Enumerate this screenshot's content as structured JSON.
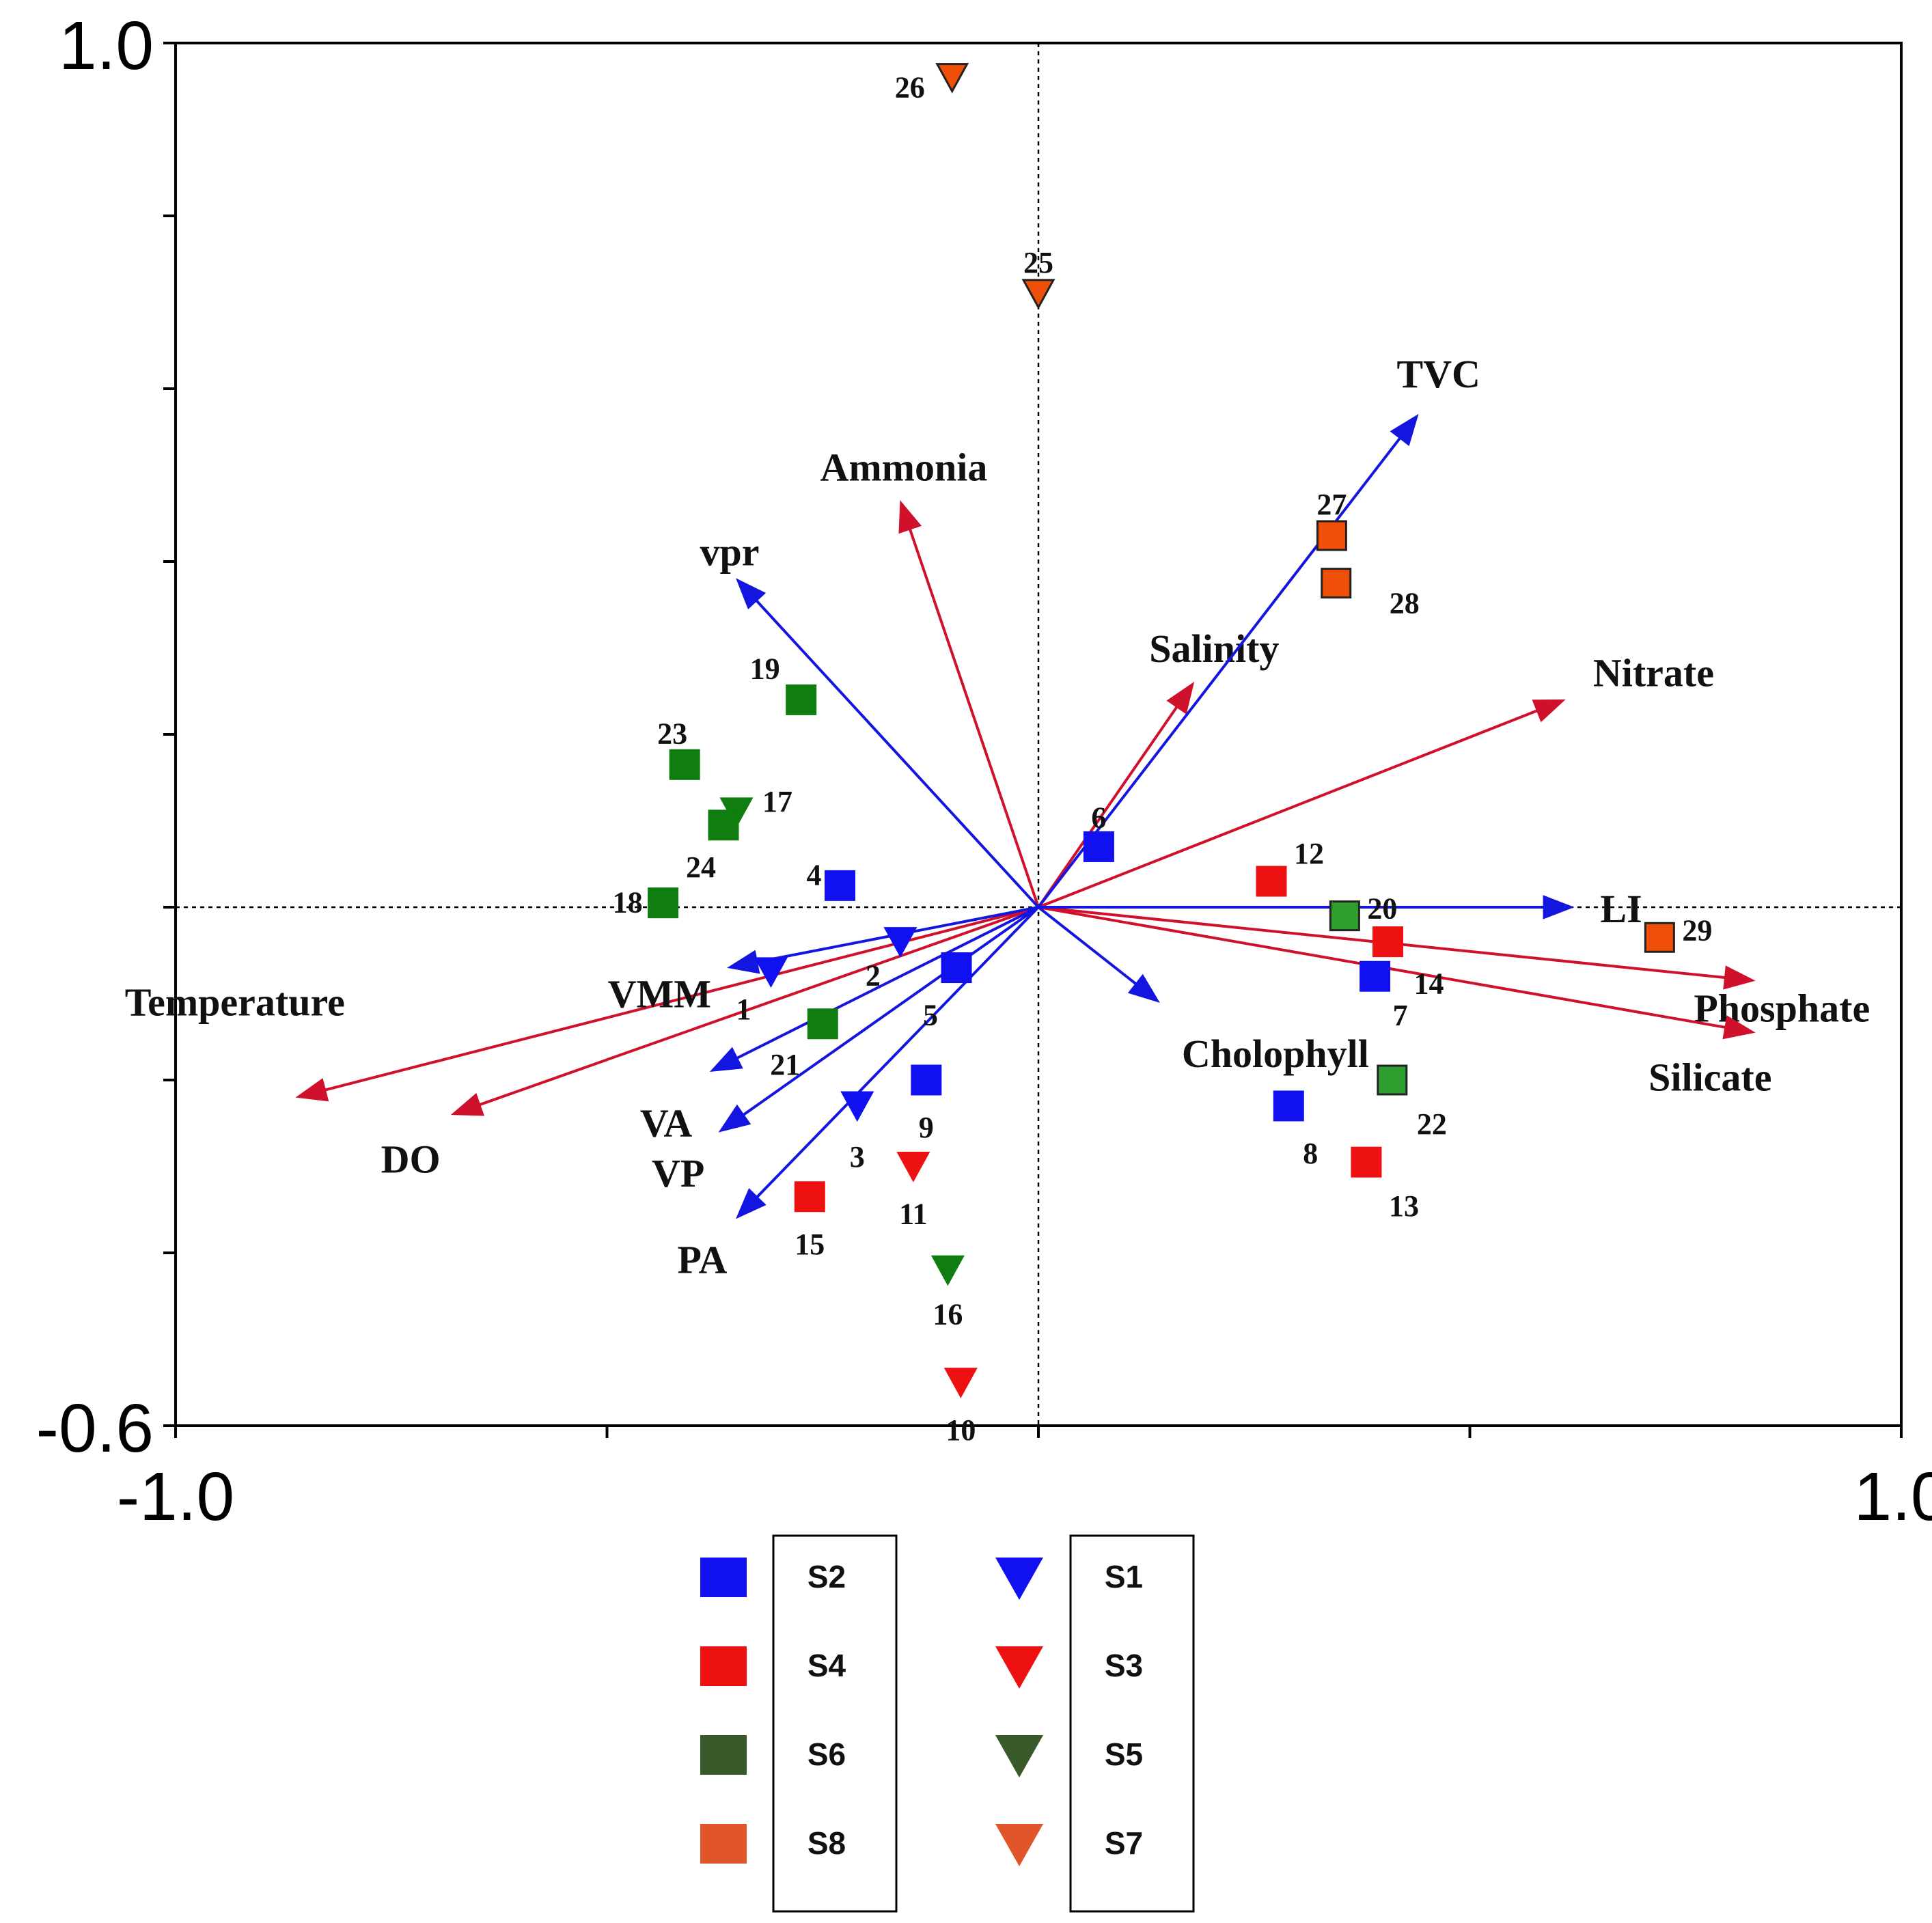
{
  "chart_data": {
    "type": "biplot",
    "xlim": [
      -1.0,
      1.0
    ],
    "ylim": [
      -0.6,
      1.0
    ],
    "x_tick_labels": [
      "-1.0",
      "1.0"
    ],
    "y_tick_labels": [
      "1.0",
      "-0.6"
    ],
    "colors": {
      "blue": "#1010f0",
      "red": "#ee1111",
      "green": "#0f7d0f",
      "light_green": "#2e9e2e",
      "orange": "#f04f0a",
      "env_arrow": "#d0112b",
      "bio_arrow": "#1515e0",
      "legend_s6": "#3a5a2c",
      "legend_s5": "#3a5a2c",
      "legend_s8": "#e0552a",
      "legend_s7": "#e0552a"
    },
    "environment_vectors": [
      {
        "name": "Temperature",
        "x": -0.86,
        "y": -0.22,
        "label_anchor": "left-above"
      },
      {
        "name": "DO",
        "x": -0.68,
        "y": -0.24,
        "label_anchor": "below"
      },
      {
        "name": "Ammonia",
        "x": -0.16,
        "y": 0.47,
        "label_anchor": "above"
      },
      {
        "name": "Salinity",
        "x": 0.18,
        "y": 0.26,
        "label_anchor": "above"
      },
      {
        "name": "Nitrate",
        "x": 0.61,
        "y": 0.24,
        "label_anchor": "right-above"
      },
      {
        "name": "Phosphate",
        "x": 0.83,
        "y": -0.085,
        "label_anchor": "right-below"
      },
      {
        "name": "Silicate",
        "x": 0.83,
        "y": -0.145,
        "label_anchor": "below"
      }
    ],
    "species_vectors": [
      {
        "name": "TVC",
        "x": 0.44,
        "y": 0.57
      },
      {
        "name": "vpr",
        "x": -0.35,
        "y": 0.38
      },
      {
        "name": "LI",
        "x": 0.62,
        "y": 0.0
      },
      {
        "name": "Cholophyll",
        "x": 0.14,
        "y": -0.11
      },
      {
        "name": "VMM",
        "x": -0.36,
        "y": -0.07
      },
      {
        "name": "VA",
        "x": -0.38,
        "y": -0.19
      },
      {
        "name": "VP",
        "x": -0.37,
        "y": -0.26
      },
      {
        "name": "PA",
        "x": -0.35,
        "y": -0.36
      }
    ],
    "samples": [
      {
        "id": "1",
        "x": -0.31,
        "y": -0.075,
        "shape": "triangle",
        "color": "blue"
      },
      {
        "id": "2",
        "x": -0.16,
        "y": -0.04,
        "shape": "triangle",
        "color": "blue"
      },
      {
        "id": "3",
        "x": -0.21,
        "y": -0.23,
        "shape": "triangle",
        "color": "blue"
      },
      {
        "id": "4",
        "x": -0.23,
        "y": 0.025,
        "shape": "square",
        "color": "blue"
      },
      {
        "id": "5",
        "x": -0.095,
        "y": -0.07,
        "shape": "square",
        "color": "blue"
      },
      {
        "id": "6",
        "x": 0.07,
        "y": 0.07,
        "shape": "square",
        "color": "blue"
      },
      {
        "id": "7",
        "x": 0.39,
        "y": -0.08,
        "shape": "square",
        "color": "blue"
      },
      {
        "id": "8",
        "x": 0.29,
        "y": -0.23,
        "shape": "square",
        "color": "blue"
      },
      {
        "id": "9",
        "x": -0.13,
        "y": -0.2,
        "shape": "square",
        "color": "blue"
      },
      {
        "id": "10",
        "x": -0.09,
        "y": -0.55,
        "shape": "triangle",
        "color": "red"
      },
      {
        "id": "11",
        "x": -0.145,
        "y": -0.3,
        "shape": "triangle",
        "color": "red"
      },
      {
        "id": "12",
        "x": 0.27,
        "y": 0.03,
        "shape": "square",
        "color": "red"
      },
      {
        "id": "13",
        "x": 0.38,
        "y": -0.295,
        "shape": "square",
        "color": "red"
      },
      {
        "id": "14",
        "x": 0.405,
        "y": -0.04,
        "shape": "square",
        "color": "red"
      },
      {
        "id": "15",
        "x": -0.265,
        "y": -0.335,
        "shape": "square",
        "color": "red"
      },
      {
        "id": "16",
        "x": -0.105,
        "y": -0.42,
        "shape": "triangle",
        "color": "green"
      },
      {
        "id": "17",
        "x": -0.35,
        "y": 0.11,
        "shape": "triangle",
        "color": "green"
      },
      {
        "id": "18",
        "x": -0.435,
        "y": 0.005,
        "shape": "square",
        "color": "green"
      },
      {
        "id": "19",
        "x": -0.275,
        "y": 0.24,
        "shape": "square",
        "color": "green"
      },
      {
        "id": "20",
        "x": 0.355,
        "y": -0.01,
        "shape": "square",
        "color": "light_green"
      },
      {
        "id": "21",
        "x": -0.25,
        "y": -0.135,
        "shape": "square",
        "color": "green"
      },
      {
        "id": "22",
        "x": 0.41,
        "y": -0.2,
        "shape": "square",
        "color": "light_green"
      },
      {
        "id": "23",
        "x": -0.41,
        "y": 0.165,
        "shape": "square",
        "color": "green"
      },
      {
        "id": "24",
        "x": -0.365,
        "y": 0.095,
        "shape": "square",
        "color": "green"
      },
      {
        "id": "25",
        "x": 0.0,
        "y": 0.71,
        "shape": "triangle",
        "color": "orange"
      },
      {
        "id": "26",
        "x": -0.1,
        "y": 0.96,
        "shape": "triangle",
        "color": "orange"
      },
      {
        "id": "27",
        "x": 0.34,
        "y": 0.43,
        "shape": "square",
        "color": "orange"
      },
      {
        "id": "28",
        "x": 0.345,
        "y": 0.375,
        "shape": "square",
        "color": "orange"
      },
      {
        "id": "29",
        "x": 0.72,
        "y": -0.035,
        "shape": "square",
        "color": "orange"
      }
    ],
    "legend": {
      "squares": [
        {
          "label": "S2",
          "color": "blue"
        },
        {
          "label": "S4",
          "color": "red"
        },
        {
          "label": "S6",
          "color": "legend_s6"
        },
        {
          "label": "S8",
          "color": "legend_s8"
        }
      ],
      "triangles": [
        {
          "label": "S1",
          "color": "blue"
        },
        {
          "label": "S3",
          "color": "red"
        },
        {
          "label": "S5",
          "color": "legend_s5"
        },
        {
          "label": "S7",
          "color": "legend_s7"
        }
      ]
    }
  }
}
